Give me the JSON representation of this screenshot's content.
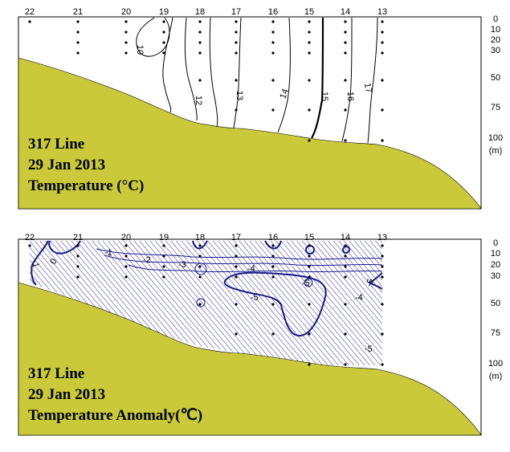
{
  "chart_data": [
    {
      "type": "contour",
      "title_lines": [
        "317 Line",
        "29 Jan 2013",
        "Temperature ("
      ],
      "title_unit": "°C)",
      "stations": [
        "22",
        "21",
        "20",
        "19",
        "18",
        "17",
        "16",
        "15",
        "14",
        "13"
      ],
      "depth_ticks": [
        "0",
        "10",
        "20",
        "30",
        "50",
        "75",
        "100"
      ],
      "depth_unit": "(m)",
      "contour_labels": [
        "10",
        "12",
        "13",
        "14",
        "15",
        "16",
        "17"
      ],
      "colors": {
        "land": "#c9c93a",
        "contour": "#000000",
        "frame": "#000000"
      }
    },
    {
      "type": "contour",
      "title_lines": [
        "317 Line",
        "29 Jan 2013",
        "Temperature Anomaly(℃)"
      ],
      "stations": [
        "22",
        "21",
        "20",
        "19",
        "18",
        "17",
        "16",
        "15",
        "14",
        "13"
      ],
      "depth_ticks": [
        "0",
        "10",
        "20",
        "30",
        "50",
        "75",
        "100"
      ],
      "depth_unit": "(m)",
      "contour_labels": [
        "-1",
        "0",
        "-1",
        "-2",
        "-3",
        "-4",
        "-5",
        "-5",
        "-5",
        "-4",
        "-5",
        "-5"
      ],
      "colors": {
        "land": "#c9c93a",
        "contour": "#1a1a8c",
        "hatch": "#2a2aa0",
        "frame": "#000000"
      }
    }
  ]
}
